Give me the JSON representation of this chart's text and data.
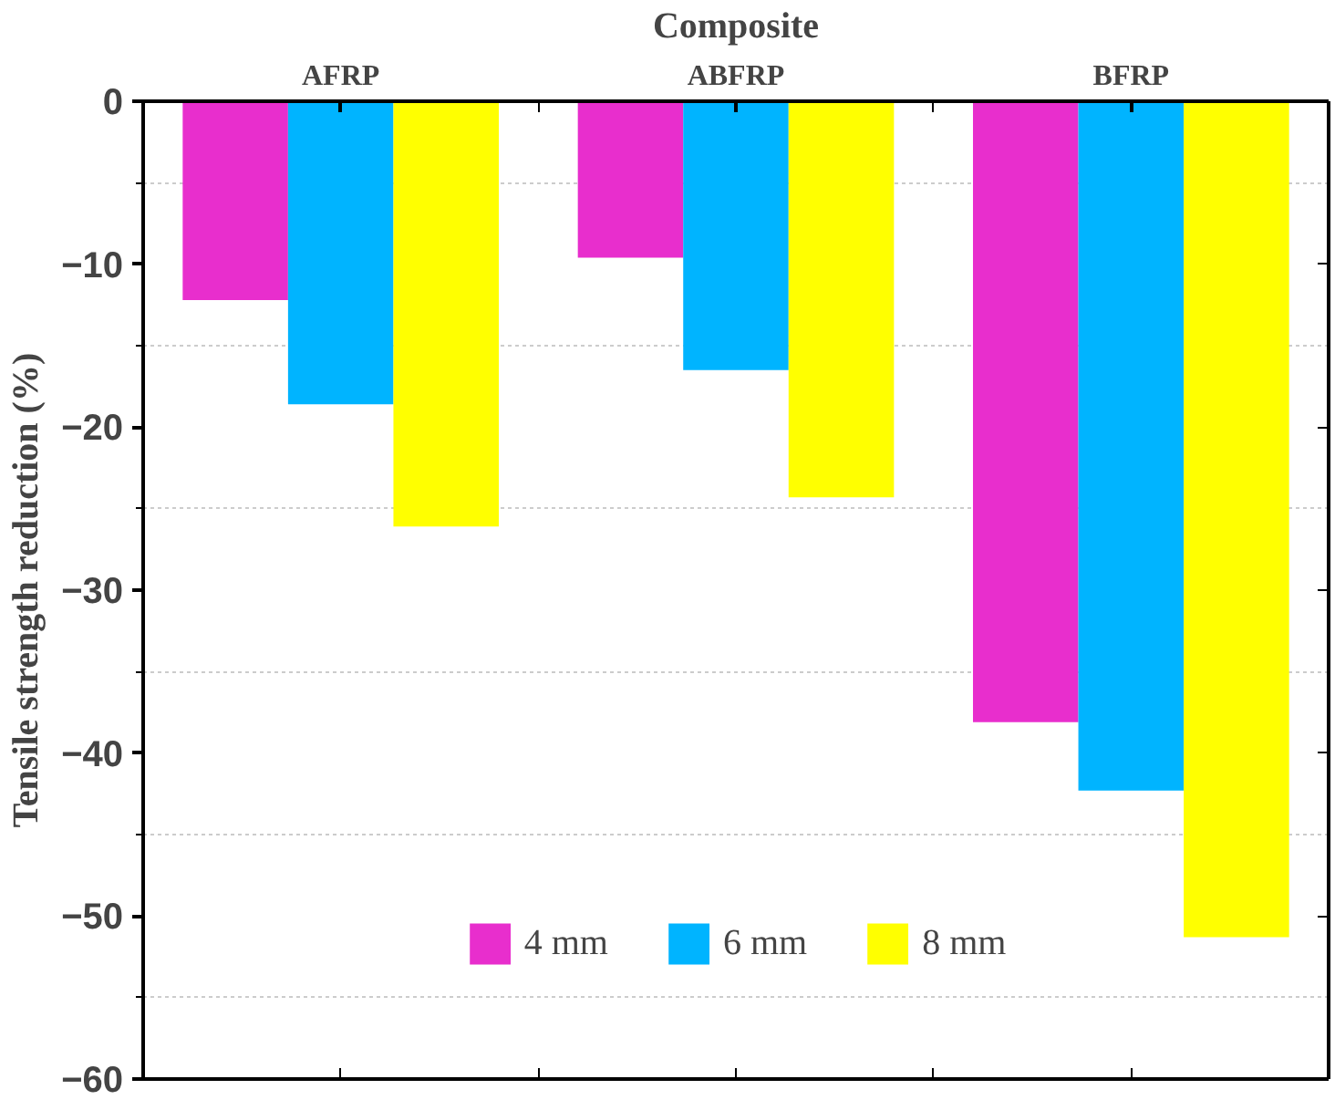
{
  "chart_data": {
    "type": "bar",
    "xlabel": "Composite",
    "ylabel": "Tensile strength reduction (%)",
    "categories": [
      "AFRP",
      "ABFRP",
      "BFRP"
    ],
    "series": [
      {
        "name": "4 mm",
        "color": "#e82ecd",
        "values": [
          -12.2,
          -9.6,
          -38.1
        ]
      },
      {
        "name": "6 mm",
        "color": "#00b4ff",
        "values": [
          -18.6,
          -16.5,
          -42.3
        ]
      },
      {
        "name": "8 mm",
        "color": "#ffff00",
        "values": [
          -26.1,
          -24.3,
          -51.3
        ]
      }
    ],
    "ylim": [
      -60,
      0
    ],
    "yticks": [
      -60,
      -50,
      -40,
      -30,
      -20,
      -10,
      0
    ],
    "grid": "y",
    "legend": "bottom"
  }
}
